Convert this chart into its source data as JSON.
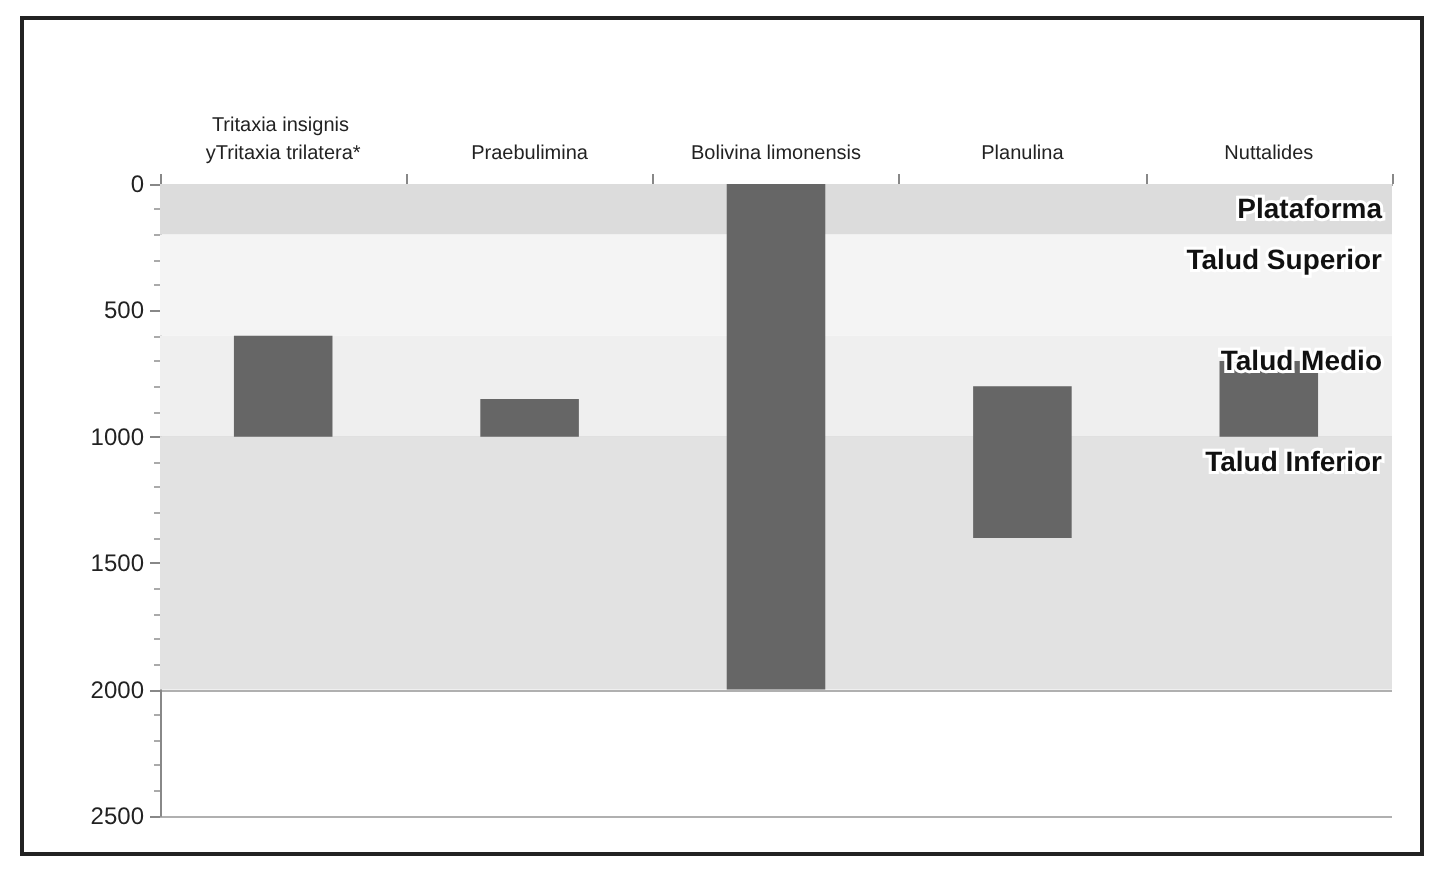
{
  "chart_data": {
    "type": "bar",
    "categories": [
      "Tritaxia insignis yTritaxia trilatera*",
      "Praebulimina",
      "Bolivina limonensis",
      "Planulina",
      "Nuttalides"
    ],
    "values": [
      400,
      150,
      2000,
      600,
      300
    ],
    "base": [
      600,
      850,
      0,
      800,
      700
    ],
    "color": "#666666",
    "ylim": [
      2500,
      0
    ],
    "yticks": [
      0,
      500,
      1000,
      1500,
      2000,
      2500
    ],
    "grid": "y",
    "bands": [
      {
        "axis": "y",
        "from": 0,
        "to": 200,
        "label": "Plataforma",
        "color": "#dcdcdc"
      },
      {
        "axis": "y",
        "from": 200,
        "to": 600,
        "label": "Talud Superior",
        "color": "#f4f4f4"
      },
      {
        "axis": "y",
        "from": 600,
        "to": 1000,
        "label": "Talud Medio",
        "color": "#efefef"
      },
      {
        "axis": "y",
        "from": 1000,
        "to": 2000,
        "label": "Talud Inferior",
        "color": "#e2e2e2"
      }
    ]
  }
}
